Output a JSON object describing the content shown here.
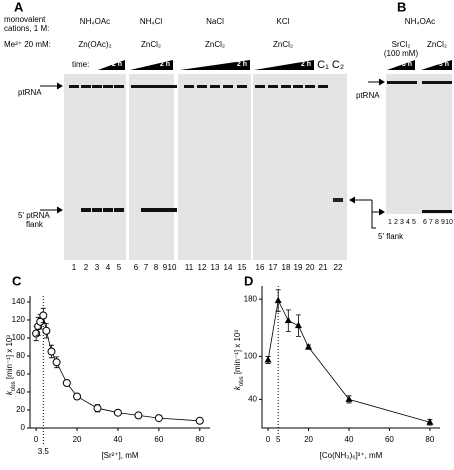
{
  "panel_a": {
    "label": "A",
    "cation_label": [
      "monovalent",
      "cations, 1 M:"
    ],
    "metal_label": "Me²⁺ 20 mM:",
    "time_label": "time:",
    "groups": [
      {
        "cation": "NH₄OAc",
        "metal": "Zn(OAc)₂",
        "time": "2 h"
      },
      {
        "cation": "NH₄Cl",
        "metal": "ZnCl₂",
        "time": "2 h"
      },
      {
        "cation": "NaCl",
        "metal": "ZnCl₂",
        "time": "2 h"
      },
      {
        "cation": "KCl",
        "metal": "ZnCl₂",
        "time": "2 h"
      }
    ],
    "controls": [
      "C₁",
      "C₂"
    ],
    "lanes": [
      1,
      2,
      3,
      4,
      5,
      6,
      7,
      8,
      9,
      10,
      11,
      12,
      13,
      14,
      15,
      16,
      17,
      18,
      19,
      20,
      21,
      22
    ],
    "ptrna": "ptRNA",
    "flank": [
      "5' ptRNA",
      "flank"
    ]
  },
  "panel_b": {
    "label": "B",
    "cation": "NH₄OAc",
    "groups": [
      {
        "metal": "SrCl₂",
        "note": "(100 mM)",
        "time": "3 h"
      },
      {
        "metal": "ZnCl₂",
        "time": "3 h"
      }
    ],
    "lanes": [
      1,
      2,
      3,
      4,
      5,
      6,
      7,
      8,
      9,
      10
    ],
    "ptrna": "ptRNA",
    "flank": "5' flank"
  },
  "chart_data": [
    {
      "type": "line",
      "panel": "C",
      "marker": "circle",
      "color": "#000000",
      "y_label": [
        "k",
        "obs",
        " [min⁻¹] x 10³"
      ],
      "x_label": "[Sr²⁺], mM",
      "x": [
        0,
        1,
        2,
        3.5,
        5,
        7.5,
        10,
        15,
        20,
        30,
        40,
        50,
        60,
        80
      ],
      "values": [
        105,
        113,
        118,
        125,
        108,
        85,
        73,
        50,
        35,
        22,
        17,
        14,
        11,
        8
      ],
      "errors": [
        8,
        10,
        8,
        8,
        8,
        7,
        6,
        3,
        3,
        4,
        2,
        2,
        2,
        2
      ],
      "xlim": [
        -3,
        85
      ],
      "xticks": [
        0,
        20,
        40,
        60,
        80
      ],
      "ref_line": 3.5,
      "ylim": [
        0,
        140
      ],
      "yticks": [
        0,
        20,
        40,
        60,
        80,
        100,
        120,
        140
      ]
    },
    {
      "type": "line",
      "panel": "D",
      "marker": "triangle",
      "color": "#000000",
      "y_label": [
        "k",
        "obs",
        " [min⁻¹] x 10³"
      ],
      "x_label": "[Co(NH₃)₆]³⁺, mM",
      "x": [
        0,
        5,
        10,
        15,
        20,
        40,
        80
      ],
      "values": [
        95,
        178,
        150,
        143,
        113,
        40,
        8
      ],
      "errors": [
        5,
        15,
        15,
        15,
        3,
        5,
        4
      ],
      "xlim": [
        -3,
        85
      ],
      "xticks": [
        0,
        20,
        40,
        60,
        80
      ],
      "ref_line": 5,
      "ylim": [
        0,
        190
      ],
      "yticks": [
        40,
        100,
        180
      ]
    }
  ]
}
